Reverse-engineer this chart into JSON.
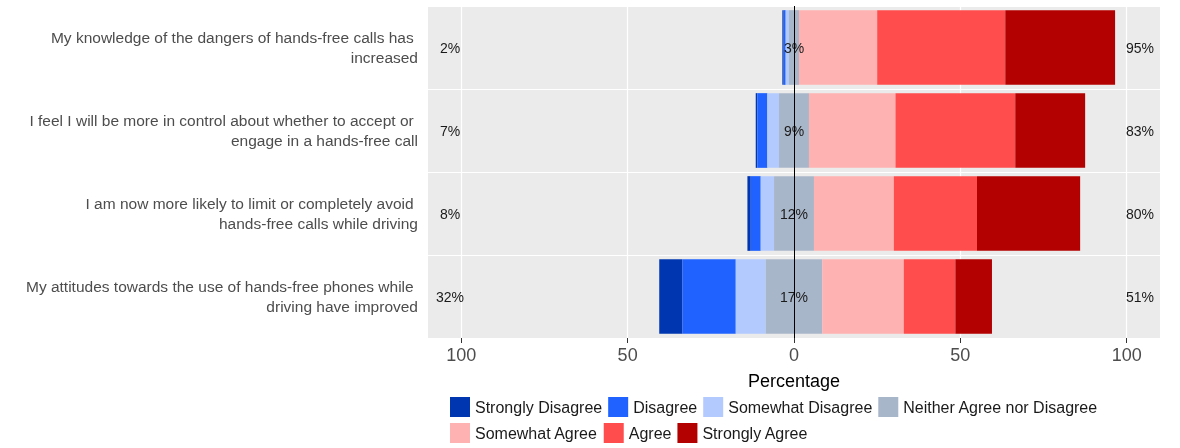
{
  "chart_data": {
    "type": "bar",
    "orientation": "horizontal",
    "xlabel": "Percentage",
    "categories": [
      "My knowledge of the dangers of hands-free calls has increased",
      "I feel I will be more in control about whether to accept or engage in a hands-free call",
      "I am now more likely to limit or completely avoid hands-free calls while driving",
      "My attitudes towards the use of hands-free phones while driving have improved"
    ],
    "series": [
      {
        "name": "Strongly Disagree",
        "color": "#0037b0",
        "base": [
          -3.5,
          -11.5,
          -14,
          -40.5
        ],
        "values": [
          0.4,
          0.5,
          1,
          7
        ]
      },
      {
        "name": "Disagree",
        "color": "#1f62ff",
        "base": [
          -3.1,
          -11,
          -13,
          -33.5
        ],
        "values": [
          0.6,
          3,
          3,
          16
        ]
      },
      {
        "name": "Somewhat Disagree",
        "color": "#b3caff",
        "base": [
          -2.5,
          -8,
          -10,
          -17.5
        ],
        "values": [
          1,
          3.5,
          4,
          9
        ]
      },
      {
        "name": "Neither Agree nor Disagree",
        "color": "#a8b6c9",
        "base": [
          -1.5,
          -4.5,
          -6,
          -8.5
        ],
        "values": [
          3,
          9,
          12,
          17
        ],
        "value_labels": [
          "3%",
          "9%",
          "12%",
          "17%"
        ]
      },
      {
        "name": "Somewhat Agree",
        "color": "#ffb2b2",
        "base": [
          1.5,
          4.5,
          6,
          8.5
        ],
        "values": [
          23.5,
          26,
          24,
          24.5
        ]
      },
      {
        "name": "Agree",
        "color": "#ff4d4d",
        "base": [
          25,
          30.5,
          30,
          33
        ],
        "values": [
          38.5,
          36,
          25,
          15.5
        ]
      },
      {
        "name": "Strongly Agree",
        "color": "#b30000",
        "base": [
          63.5,
          66.5,
          55,
          48.5
        ],
        "values": [
          33,
          21,
          31,
          11
        ]
      }
    ],
    "annotations": [
      "2%",
      "7%",
      "8%",
      "32%",
      "95%",
      "83%",
      "80%",
      "51%"
    ],
    "ref_lines": [
      {
        "axis": "x",
        "value": 0,
        "color": "#000000"
      }
    ],
    "xlim": [
      -110,
      110
    ],
    "xticks": [
      {
        "value": -100,
        "label": "100"
      },
      {
        "value": -50,
        "label": "50"
      },
      0,
      50,
      100
    ],
    "grid": true,
    "legend": "bottom"
  }
}
